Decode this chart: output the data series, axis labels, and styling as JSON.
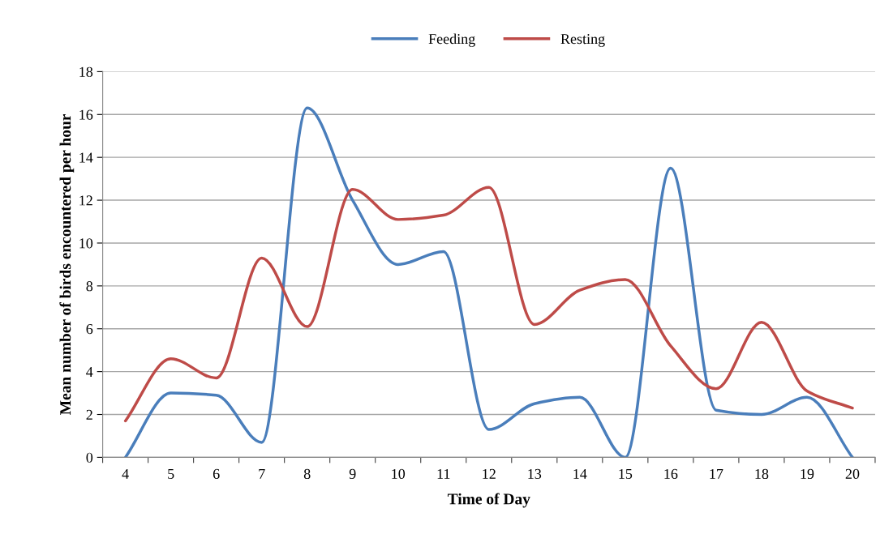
{
  "chart_data": {
    "type": "line",
    "xlabel": "Time of Day",
    "ylabel": "Mean number of birds encountered per hour",
    "categories": [
      "4",
      "5",
      "6",
      "7",
      "8",
      "9",
      "10",
      "11",
      "12",
      "13",
      "14",
      "15",
      "16",
      "17",
      "18",
      "19",
      "20"
    ],
    "series": [
      {
        "name": "Feeding",
        "color": "#4a7ebb",
        "values": [
          0,
          3.0,
          2.9,
          0.7,
          16.3,
          12.0,
          9.0,
          9.6,
          1.3,
          2.5,
          2.8,
          0,
          13.5,
          2.2,
          2.0,
          2.8,
          0
        ]
      },
      {
        "name": "Resting",
        "color": "#be4b48",
        "values": [
          1.7,
          4.6,
          3.7,
          9.3,
          6.1,
          12.5,
          11.1,
          11.3,
          12.6,
          6.2,
          7.8,
          8.3,
          5.2,
          3.2,
          6.3,
          3.1,
          2.3
        ]
      }
    ],
    "ylim": [
      0,
      18
    ],
    "yticks": [
      0,
      2,
      4,
      6,
      8,
      10,
      12,
      14,
      16,
      18
    ],
    "grid": "y",
    "legend": "top",
    "marker": "none",
    "line_style": "solid"
  }
}
